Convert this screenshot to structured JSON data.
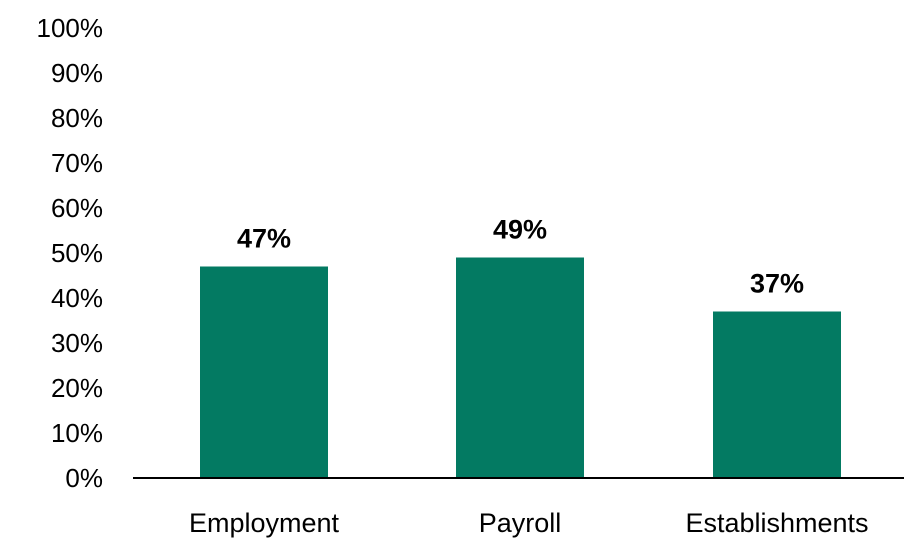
{
  "chart_data": {
    "type": "bar",
    "categories": [
      "Employment",
      "Payroll",
      "Establishments"
    ],
    "values": [
      47,
      49,
      37
    ],
    "value_labels": [
      "47%",
      "49%",
      "37%"
    ],
    "title": "",
    "xlabel": "",
    "ylabel": "",
    "ylim": [
      0,
      100
    ],
    "yticks": [
      0,
      10,
      20,
      30,
      40,
      50,
      60,
      70,
      80,
      90,
      100
    ],
    "ytick_labels": [
      "0%",
      "10%",
      "20%",
      "30%",
      "40%",
      "50%",
      "60%",
      "70%",
      "80%",
      "90%",
      "100%"
    ],
    "grid": false,
    "legend": "none",
    "bar_color": "#037A62",
    "axis_color": "#000000"
  }
}
